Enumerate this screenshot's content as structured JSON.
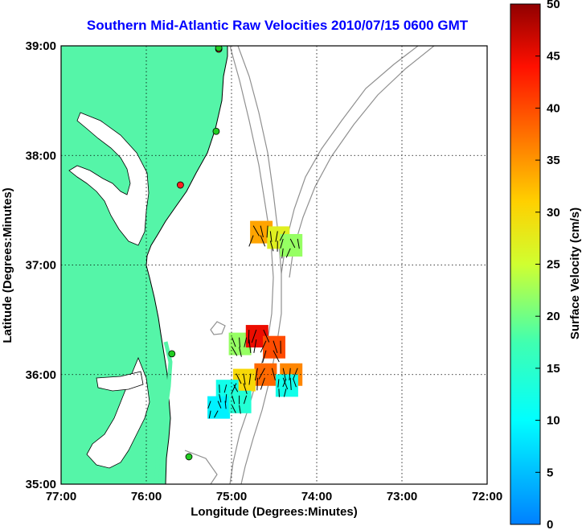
{
  "title": "Southern Mid-Atlantic Raw Velocities 2010/07/15 0600 GMT",
  "xlabel": "Longitude (Degrees:Minutes)",
  "ylabel": "Latitude (Degrees:Minutes)",
  "x_ticks": [
    "77:00",
    "76:00",
    "75:00",
    "74:00",
    "73:00",
    "72:00"
  ],
  "y_ticks": [
    "39:00",
    "38:00",
    "37:00",
    "36:00",
    "35:00"
  ],
  "colorbar": {
    "label": "Surface Velocity (cm/s)",
    "ticks": [
      "50",
      "45",
      "40",
      "35",
      "30",
      "25",
      "20",
      "15",
      "10",
      "5",
      "0"
    ]
  },
  "colors": {
    "land": "#55f5a8",
    "coast": "#000000",
    "bathymetry": "#909090",
    "grid": "#000000",
    "title": "#0000ff",
    "station_green": "#22cc22",
    "station_red": "#ff2020"
  },
  "map_data": {
    "type": "map",
    "lon_range": [
      -77.0,
      -72.0
    ],
    "lat_range": [
      35.0,
      39.0
    ],
    "grid": true,
    "stations": [
      {
        "lon": -75.15,
        "lat": 38.97,
        "status": "red"
      },
      {
        "lon": -75.15,
        "lat": 38.98,
        "status": "green"
      },
      {
        "lon": -75.18,
        "lat": 38.22,
        "status": "green"
      },
      {
        "lon": -75.6,
        "lat": 37.73,
        "status": "red"
      },
      {
        "lon": -75.7,
        "lat": 36.19,
        "status": "green"
      },
      {
        "lon": -75.5,
        "lat": 35.25,
        "status": "green"
      }
    ],
    "velocity_patches": [
      {
        "lon": -74.65,
        "lat": 37.3,
        "speed": 34
      },
      {
        "lon": -74.45,
        "lat": 37.25,
        "speed": 27
      },
      {
        "lon": -74.3,
        "lat": 37.18,
        "speed": 22
      },
      {
        "lon": -74.9,
        "lat": 36.28,
        "speed": 22
      },
      {
        "lon": -74.7,
        "lat": 36.35,
        "speed": 45
      },
      {
        "lon": -74.5,
        "lat": 36.25,
        "speed": 40
      },
      {
        "lon": -74.3,
        "lat": 36.0,
        "speed": 36
      },
      {
        "lon": -74.6,
        "lat": 36.0,
        "speed": 38
      },
      {
        "lon": -74.85,
        "lat": 35.95,
        "speed": 30
      },
      {
        "lon": -75.05,
        "lat": 35.85,
        "speed": 12
      },
      {
        "lon": -75.15,
        "lat": 35.7,
        "speed": 9
      },
      {
        "lon": -74.9,
        "lat": 35.75,
        "speed": 14
      },
      {
        "lon": -74.35,
        "lat": 35.9,
        "speed": 12
      }
    ]
  }
}
